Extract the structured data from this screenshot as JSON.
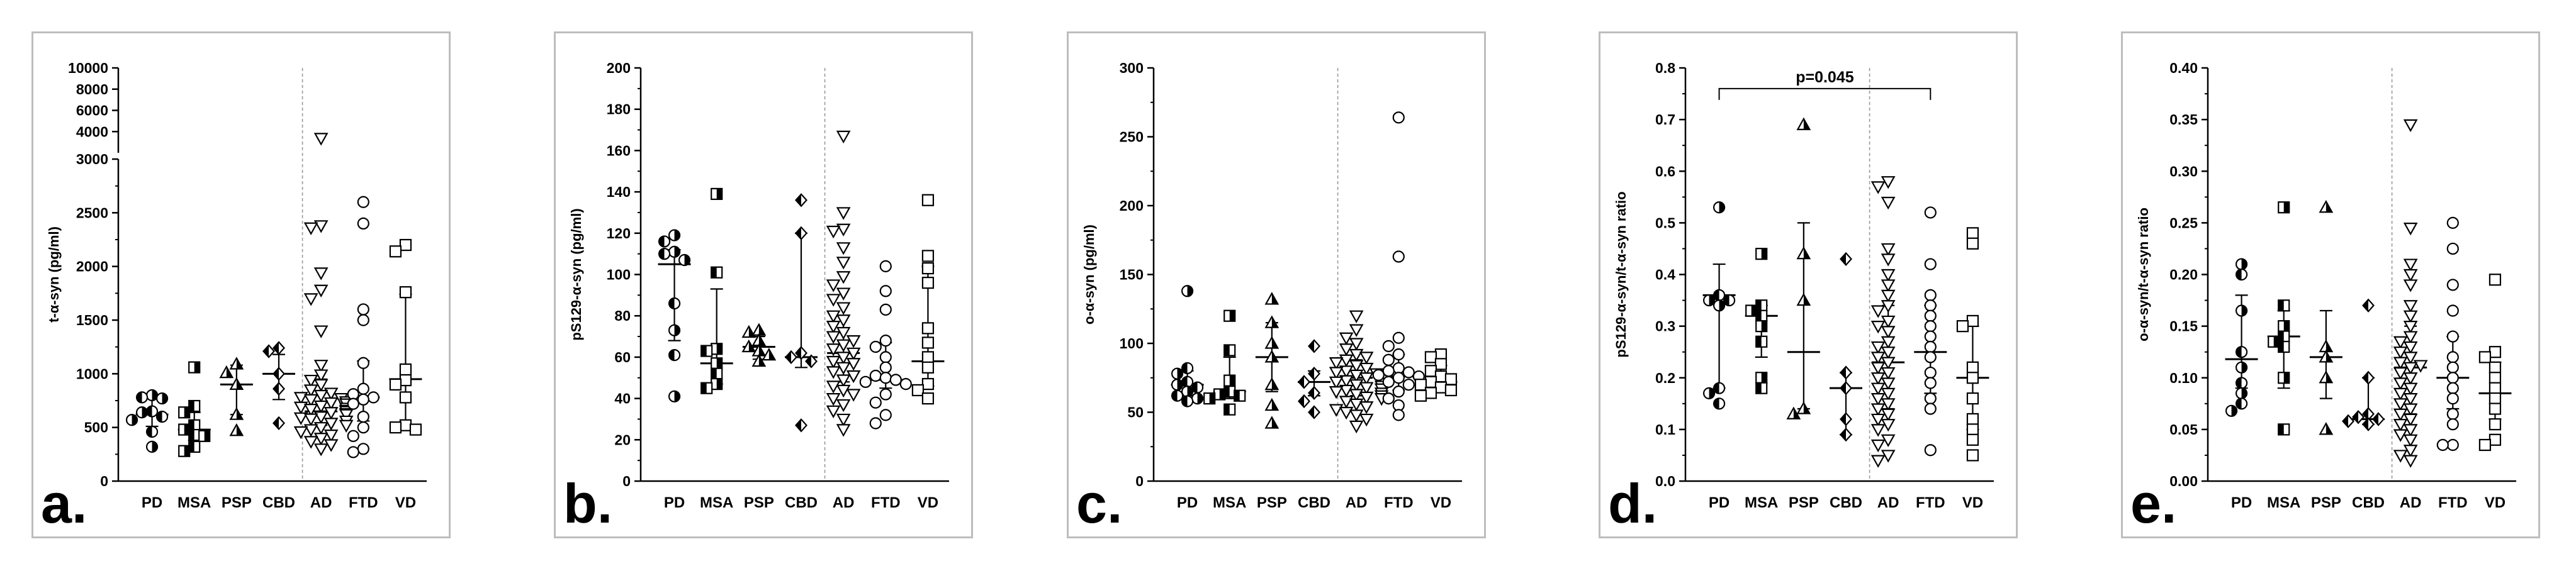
{
  "chart_data": [
    {
      "type": "scatter",
      "letter": "a.",
      "ylabel": "t-α-syn (pg/ml)",
      "ylim": [
        0,
        3000
      ],
      "ylim_upper": [
        3000,
        10000
      ],
      "yticks": [
        "0",
        "500",
        "1000",
        "1500",
        "2000",
        "2500",
        "3000"
      ],
      "yticks_upper": [
        "4000",
        "6000",
        "8000",
        "10000"
      ],
      "categories": [
        "PD",
        "MSA",
        "PSP",
        "CBD",
        "AD",
        "FTD",
        "VD"
      ],
      "median": [
        620,
        480,
        900,
        1000,
        650,
        780,
        950
      ],
      "iqr": [
        [
          510,
          790
        ],
        [
          380,
          640
        ],
        [
          620,
          1080
        ],
        [
          760,
          1180
        ],
        [
          520,
          950
        ],
        [
          560,
          1120
        ],
        [
          520,
          1740
        ]
      ],
      "points": [
        [
          800,
          780,
          770,
          650,
          640,
          600,
          570,
          460,
          320
        ],
        [
          1060,
          700,
          640,
          520,
          480,
          430,
          420,
          320,
          280
        ],
        [
          1090,
          1010,
          900,
          620,
          470
        ],
        [
          1240,
          1210,
          1000,
          860,
          540
        ],
        [
          4200,
          2380,
          2360,
          1940,
          1780,
          1700,
          1400,
          1080,
          990,
          940,
          900,
          850,
          820,
          800,
          780,
          770,
          760,
          740,
          730,
          720,
          700,
          690,
          680,
          670,
          660,
          650,
          640,
          630,
          620,
          600,
          590,
          580,
          560,
          540,
          520,
          500,
          480,
          460,
          430,
          400,
          370,
          340,
          300
        ],
        [
          2600,
          2400,
          1600,
          1500,
          1100,
          860,
          810,
          780,
          760,
          720,
          600,
          500,
          420,
          300,
          270
        ],
        [
          2200,
          2140,
          1760,
          1040,
          940,
          900,
          780,
          520,
          500,
          480
        ]
      ],
      "markers": [
        "circle-half",
        "square-half",
        "triangle",
        "diamond-half",
        "triangle-down",
        "circle",
        "square"
      ]
    },
    {
      "type": "scatter",
      "letter": "b.",
      "ylabel": "pS129-α-syn (pg/ml)",
      "ylim": [
        0,
        200
      ],
      "yticks": [
        "0",
        "20",
        "40",
        "60",
        "80",
        "100",
        "120",
        "140",
        "160",
        "180",
        "200"
      ],
      "categories": [
        "PD",
        "MSA",
        "PSP",
        "CBD",
        "AD",
        "FTD",
        "VD"
      ],
      "median": [
        105,
        57,
        65,
        60,
        62,
        49,
        58
      ],
      "iqr": [
        [
          68,
          112
        ],
        [
          47,
          93
        ],
        [
          59,
          70
        ],
        [
          55,
          120
        ],
        [
          48,
          80
        ],
        [
          45,
          67
        ],
        [
          46,
          104
        ]
      ],
      "points": [
        [
          119,
          116,
          111,
          110,
          107,
          86,
          73,
          61,
          41
        ],
        [
          139,
          101,
          64,
          63,
          57,
          52,
          47,
          45
        ],
        [
          73,
          72,
          68,
          65,
          63,
          61,
          58
        ],
        [
          136,
          120,
          62,
          60,
          58,
          27
        ],
        [
          167,
          130,
          122,
          121,
          113,
          106,
          99,
          95,
          91,
          88,
          84,
          80,
          78,
          75,
          72,
          70,
          68,
          66,
          64,
          62,
          60,
          58,
          57,
          55,
          53,
          51,
          49,
          46,
          44,
          42,
          40,
          37,
          34,
          30,
          25
        ],
        [
          104,
          92,
          83,
          68,
          65,
          60,
          55,
          51,
          50,
          49,
          48,
          47,
          42,
          38,
          32,
          28
        ],
        [
          136,
          109,
          103,
          96,
          74,
          67,
          60,
          55,
          47,
          44,
          40
        ]
      ],
      "markers": [
        "circle-half",
        "square-half",
        "triangle",
        "diamond-half",
        "triangle-down",
        "circle",
        "square"
      ]
    },
    {
      "type": "scatter",
      "letter": "c.",
      "ylabel": "o-α-syn (pg/ml)",
      "ylim": [
        0,
        300
      ],
      "yticks": [
        "0",
        "50",
        "100",
        "150",
        "200",
        "250",
        "300"
      ],
      "categories": [
        "PD",
        "MSA",
        "PSP",
        "CBD",
        "AD",
        "FTD",
        "VD"
      ],
      "median": [
        70,
        65,
        90,
        72,
        75,
        76,
        72
      ],
      "iqr": [
        [
          62,
          80
        ],
        [
          60,
          90
        ],
        [
          65,
          115
        ],
        [
          62,
          80
        ],
        [
          62,
          88
        ],
        [
          66,
          92
        ],
        [
          66,
          84
        ]
      ],
      "points": [
        [
          138,
          82,
          78,
          72,
          70,
          68,
          65,
          62,
          60,
          58
        ],
        [
          120,
          95,
          73,
          65,
          63,
          62,
          60,
          52
        ],
        [
          132,
          115,
          100,
          90,
          70,
          55,
          42
        ],
        [
          98,
          78,
          72,
          64,
          58,
          50
        ],
        [
          120,
          110,
          104,
          100,
          96,
          92,
          90,
          88,
          86,
          84,
          82,
          80,
          79,
          78,
          77,
          76,
          75,
          74,
          73,
          72,
          71,
          70,
          69,
          68,
          67,
          66,
          65,
          64,
          63,
          62,
          61,
          60,
          58,
          56,
          54,
          52,
          50,
          48,
          45,
          40
        ],
        [
          264,
          163,
          104,
          98,
          92,
          88,
          82,
          80,
          79,
          77,
          76,
          75,
          72,
          70,
          65,
          60,
          55,
          48
        ],
        [
          92,
          90,
          85,
          80,
          76,
          74,
          72,
          70,
          68,
          66,
          64,
          62
        ]
      ],
      "markers": [
        "circle-half",
        "square-half",
        "triangle",
        "diamond-half",
        "triangle-down",
        "circle",
        "square"
      ]
    },
    {
      "type": "scatter",
      "letter": "d.",
      "ylabel": "pS129-α-syn/t-α-syn ratio",
      "ylim": [
        0,
        0.8
      ],
      "yticks": [
        "0.0",
        "0.1",
        "0.2",
        "0.3",
        "0.4",
        "0.5",
        "0.6",
        "0.7",
        "0.8"
      ],
      "categories": [
        "PD",
        "MSA",
        "PSP",
        "CBD",
        "AD",
        "FTD",
        "VD"
      ],
      "median": [
        0.36,
        0.32,
        0.25,
        0.18,
        0.23,
        0.25,
        0.2
      ],
      "iqr": [
        [
          0.18,
          0.42
        ],
        [
          0.24,
          0.34
        ],
        [
          0.14,
          0.5
        ],
        [
          0.09,
          0.21
        ],
        [
          0.14,
          0.34
        ],
        [
          0.17,
          0.34
        ],
        [
          0.1,
          0.3
        ]
      ],
      "points": [
        [
          0.53,
          0.36,
          0.35,
          0.35,
          0.34,
          0.18,
          0.17,
          0.15
        ],
        [
          0.44,
          0.34,
          0.33,
          0.32,
          0.3,
          0.27,
          0.2,
          0.18
        ],
        [
          0.69,
          0.44,
          0.35,
          0.14,
          0.13
        ],
        [
          0.43,
          0.21,
          0.18,
          0.12,
          0.09
        ],
        [
          0.58,
          0.57,
          0.54,
          0.45,
          0.43,
          0.4,
          0.38,
          0.36,
          0.34,
          0.33,
          0.31,
          0.3,
          0.29,
          0.27,
          0.26,
          0.25,
          0.24,
          0.23,
          0.22,
          0.21,
          0.2,
          0.19,
          0.18,
          0.17,
          0.16,
          0.15,
          0.14,
          0.13,
          0.12,
          0.11,
          0.1,
          0.08,
          0.07,
          0.05,
          0.04
        ],
        [
          0.52,
          0.42,
          0.36,
          0.34,
          0.32,
          0.3,
          0.28,
          0.26,
          0.24,
          0.21,
          0.19,
          0.16,
          0.14,
          0.06
        ],
        [
          0.48,
          0.46,
          0.31,
          0.3,
          0.22,
          0.2,
          0.16,
          0.12,
          0.1,
          0.08,
          0.05
        ]
      ],
      "markers": [
        "circle-half",
        "square-half",
        "triangle",
        "diamond-half",
        "triangle-down",
        "circle",
        "square"
      ],
      "annotation": {
        "text": "p=0.045",
        "from": "PD",
        "to": "FTD",
        "level": 0.76
      }
    },
    {
      "type": "scatter",
      "letter": "e.",
      "ylabel": "o-α-syn/t-α-syn ratio",
      "ylim": [
        0,
        0.4
      ],
      "yticks": [
        "0.00",
        "0.05",
        "0.10",
        "0.15",
        "0.20",
        "0.25",
        "0.30",
        "0.35",
        "0.40"
      ],
      "categories": [
        "PD",
        "MSA",
        "PSP",
        "CBD",
        "AD",
        "FTD",
        "VD"
      ],
      "median": [
        0.118,
        0.14,
        0.12,
        0.06,
        0.11,
        0.1,
        0.085
      ],
      "iqr": [
        [
          0.09,
          0.18
        ],
        [
          0.09,
          0.165
        ],
        [
          0.08,
          0.165
        ],
        [
          0.055,
          0.1
        ],
        [
          0.065,
          0.15
        ],
        [
          0.07,
          0.14
        ],
        [
          0.06,
          0.115
        ]
      ],
      "points": [
        [
          0.21,
          0.2,
          0.165,
          0.125,
          0.11,
          0.095,
          0.085,
          0.075,
          0.068
        ],
        [
          0.265,
          0.17,
          0.15,
          0.14,
          0.135,
          0.13,
          0.1,
          0.05
        ],
        [
          0.265,
          0.13,
          0.12,
          0.1,
          0.05
        ],
        [
          0.17,
          0.1,
          0.065,
          0.062,
          0.06,
          0.058,
          0.055
        ],
        [
          0.345,
          0.245,
          0.21,
          0.2,
          0.19,
          0.17,
          0.16,
          0.15,
          0.14,
          0.135,
          0.13,
          0.125,
          0.12,
          0.115,
          0.112,
          0.11,
          0.105,
          0.1,
          0.095,
          0.09,
          0.085,
          0.08,
          0.075,
          0.07,
          0.065,
          0.06,
          0.055,
          0.05,
          0.045,
          0.04,
          0.03,
          0.025,
          0.02
        ],
        [
          0.25,
          0.225,
          0.19,
          0.165,
          0.14,
          0.12,
          0.11,
          0.1,
          0.09,
          0.08,
          0.065,
          0.055,
          0.035,
          0.035
        ],
        [
          0.195,
          0.125,
          0.12,
          0.11,
          0.1,
          0.09,
          0.08,
          0.07,
          0.055,
          0.04,
          0.035
        ]
      ],
      "markers": [
        "circle-half",
        "square-half",
        "triangle",
        "diamond-half",
        "triangle-down",
        "circle",
        "square"
      ]
    }
  ]
}
